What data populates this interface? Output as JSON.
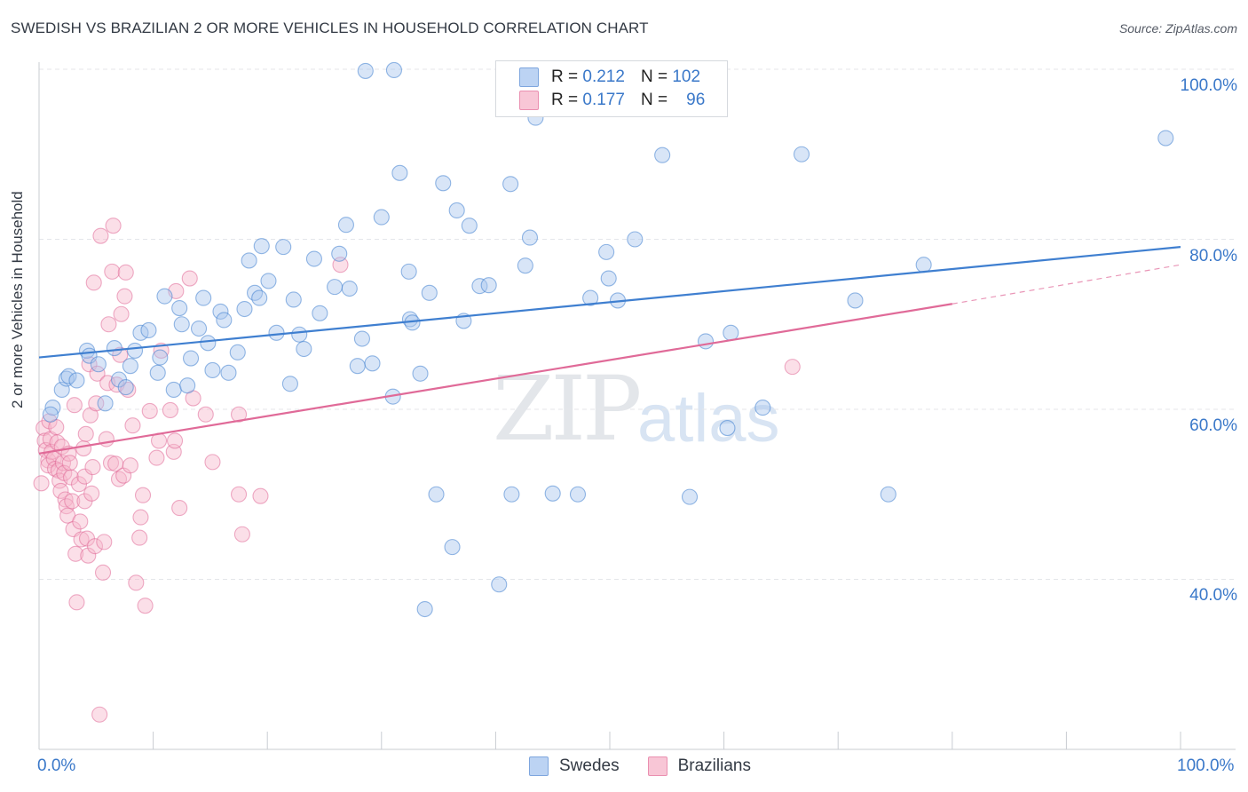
{
  "title": "SWEDISH VS BRAZILIAN 2 OR MORE VEHICLES IN HOUSEHOLD CORRELATION CHART",
  "source": "Source: ZipAtlas.com",
  "watermark": {
    "zip": "ZIP",
    "atlas": "atlas"
  },
  "legend": {
    "swedes": {
      "r_label": "R =",
      "r_value": "0.212",
      "n_label": "N =",
      "n_value": "102",
      "color": "#a9c6ee"
    },
    "brazilians": {
      "r_label": "R =",
      "r_value": "0.177",
      "n_label": "N =",
      "n_value": "96",
      "color": "#f6b8cc"
    }
  },
  "bottom_legend": {
    "swedes": "Swedes",
    "brazilians": "Brazilians"
  },
  "chart_data": {
    "type": "scatter",
    "xlabel": "",
    "ylabel": "2 or more Vehicles in Household",
    "xlim": [
      0,
      100
    ],
    "ylim": [
      20,
      100
    ],
    "x_tick_labels": [
      "0.0%",
      "100.0%"
    ],
    "y_tick_labels": [
      {
        "value": 100,
        "label": "100.0%"
      },
      {
        "value": 80,
        "label": "80.0%"
      },
      {
        "value": 60,
        "label": "60.0%"
      },
      {
        "value": 40,
        "label": "40.0%"
      }
    ],
    "grid": true,
    "series": [
      {
        "name": "Swedes",
        "color": "#3f7fd0",
        "fill": "#a9c6ee",
        "trend": {
          "x0": 0,
          "y0": 66.1,
          "x1": 100,
          "y1": 79.1
        },
        "points": [
          [
            1.2,
            60.2
          ],
          [
            1.0,
            59.4
          ],
          [
            2.0,
            62.3
          ],
          [
            2.4,
            63.6
          ],
          [
            2.6,
            63.9
          ],
          [
            3.3,
            63.4
          ],
          [
            4.2,
            66.9
          ],
          [
            4.4,
            66.3
          ],
          [
            5.2,
            65.3
          ],
          [
            5.8,
            60.7
          ],
          [
            6.6,
            67.2
          ],
          [
            7.0,
            63.5
          ],
          [
            7.6,
            62.6
          ],
          [
            8.0,
            65.1
          ],
          [
            8.4,
            66.9
          ],
          [
            8.9,
            69.0
          ],
          [
            9.6,
            69.3
          ],
          [
            10.4,
            64.3
          ],
          [
            10.6,
            66.1
          ],
          [
            11.0,
            73.3
          ],
          [
            11.8,
            62.3
          ],
          [
            12.3,
            71.9
          ],
          [
            12.5,
            70.0
          ],
          [
            13.0,
            62.8
          ],
          [
            13.3,
            66.0
          ],
          [
            14.0,
            69.5
          ],
          [
            14.4,
            73.1
          ],
          [
            14.8,
            67.8
          ],
          [
            15.2,
            64.6
          ],
          [
            15.9,
            71.5
          ],
          [
            16.2,
            70.5
          ],
          [
            16.6,
            64.3
          ],
          [
            17.4,
            66.7
          ],
          [
            18.0,
            71.8
          ],
          [
            18.4,
            77.5
          ],
          [
            18.9,
            73.7
          ],
          [
            19.3,
            73.1
          ],
          [
            19.5,
            79.2
          ],
          [
            20.1,
            75.1
          ],
          [
            20.8,
            69.0
          ],
          [
            21.4,
            79.1
          ],
          [
            22.0,
            63.0
          ],
          [
            22.3,
            72.9
          ],
          [
            22.8,
            68.8
          ],
          [
            23.2,
            67.1
          ],
          [
            24.1,
            77.7
          ],
          [
            24.6,
            71.3
          ],
          [
            25.9,
            74.4
          ],
          [
            26.3,
            78.3
          ],
          [
            26.9,
            81.7
          ],
          [
            27.2,
            74.2
          ],
          [
            27.9,
            65.1
          ],
          [
            28.3,
            68.3
          ],
          [
            28.6,
            99.8
          ],
          [
            29.2,
            65.4
          ],
          [
            30.0,
            82.6
          ],
          [
            31.0,
            61.5
          ],
          [
            31.1,
            99.9
          ],
          [
            31.6,
            87.8
          ],
          [
            32.4,
            76.2
          ],
          [
            32.5,
            70.6
          ],
          [
            32.7,
            70.2
          ],
          [
            33.4,
            64.2
          ],
          [
            33.8,
            36.5
          ],
          [
            34.2,
            73.7
          ],
          [
            34.8,
            50.0
          ],
          [
            35.4,
            86.6
          ],
          [
            36.2,
            43.8
          ],
          [
            36.6,
            83.4
          ],
          [
            37.2,
            70.4
          ],
          [
            37.7,
            81.6
          ],
          [
            38.6,
            74.5
          ],
          [
            39.4,
            74.6
          ],
          [
            40.3,
            39.4
          ],
          [
            41.3,
            86.5
          ],
          [
            41.4,
            50.0
          ],
          [
            42.6,
            76.9
          ],
          [
            43.0,
            80.2
          ],
          [
            43.5,
            94.3
          ],
          [
            45.0,
            50.1
          ],
          [
            47.2,
            50.0
          ],
          [
            48.3,
            73.1
          ],
          [
            49.7,
            78.5
          ],
          [
            49.9,
            75.4
          ],
          [
            50.7,
            72.8
          ],
          [
            52.2,
            80.0
          ],
          [
            54.6,
            89.9
          ],
          [
            57.0,
            49.7
          ],
          [
            58.4,
            68.0
          ],
          [
            60.3,
            57.8
          ],
          [
            60.6,
            69.0
          ],
          [
            63.4,
            60.2
          ],
          [
            66.8,
            90.0
          ],
          [
            71.5,
            72.8
          ],
          [
            74.4,
            50.0
          ],
          [
            77.5,
            77.0
          ],
          [
            98.7,
            91.9
          ]
        ]
      },
      {
        "name": "Brazilians",
        "color": "#e06a98",
        "fill": "#f6b8cc",
        "trend": {
          "x0": 0,
          "y0": 54.8,
          "x1": 80,
          "y1": 72.4,
          "dash_x1": 100,
          "dash_y1": 77.0
        },
        "points": [
          [
            0.2,
            51.3
          ],
          [
            0.4,
            57.8
          ],
          [
            0.5,
            56.3
          ],
          [
            0.6,
            55.2
          ],
          [
            0.8,
            54.0
          ],
          [
            0.8,
            53.4
          ],
          [
            0.9,
            58.6
          ],
          [
            1.0,
            56.5
          ],
          [
            1.1,
            55.0
          ],
          [
            1.3,
            54.2
          ],
          [
            1.4,
            53.0
          ],
          [
            1.5,
            57.9
          ],
          [
            1.6,
            56.1
          ],
          [
            1.7,
            52.8
          ],
          [
            1.8,
            51.6
          ],
          [
            1.9,
            50.4
          ],
          [
            2.0,
            55.6
          ],
          [
            2.1,
            53.7
          ],
          [
            2.2,
            52.5
          ],
          [
            2.3,
            49.4
          ],
          [
            2.4,
            48.6
          ],
          [
            2.5,
            47.5
          ],
          [
            2.6,
            54.8
          ],
          [
            2.7,
            53.7
          ],
          [
            2.8,
            52.0
          ],
          [
            2.9,
            49.2
          ],
          [
            3.0,
            45.9
          ],
          [
            3.1,
            60.5
          ],
          [
            3.2,
            43.0
          ],
          [
            3.3,
            37.3
          ],
          [
            3.5,
            51.2
          ],
          [
            3.6,
            46.8
          ],
          [
            3.7,
            44.7
          ],
          [
            3.9,
            55.4
          ],
          [
            4.0,
            52.1
          ],
          [
            4.0,
            49.2
          ],
          [
            4.1,
            57.1
          ],
          [
            4.2,
            44.8
          ],
          [
            4.3,
            42.8
          ],
          [
            4.4,
            65.3
          ],
          [
            4.5,
            59.3
          ],
          [
            4.6,
            50.1
          ],
          [
            4.7,
            53.2
          ],
          [
            4.8,
            74.9
          ],
          [
            4.9,
            43.9
          ],
          [
            5.0,
            60.7
          ],
          [
            5.1,
            64.2
          ],
          [
            5.3,
            24.1
          ],
          [
            5.4,
            80.4
          ],
          [
            5.6,
            40.8
          ],
          [
            5.7,
            44.4
          ],
          [
            5.9,
            56.5
          ],
          [
            6.0,
            63.1
          ],
          [
            6.1,
            70.0
          ],
          [
            6.3,
            53.7
          ],
          [
            6.4,
            76.2
          ],
          [
            6.5,
            81.6
          ],
          [
            6.7,
            53.6
          ],
          [
            6.8,
            62.9
          ],
          [
            7.0,
            51.8
          ],
          [
            7.1,
            66.4
          ],
          [
            7.2,
            71.2
          ],
          [
            7.4,
            52.2
          ],
          [
            7.5,
            73.3
          ],
          [
            7.6,
            76.1
          ],
          [
            7.8,
            62.3
          ],
          [
            8.0,
            53.4
          ],
          [
            8.2,
            58.1
          ],
          [
            8.5,
            39.6
          ],
          [
            8.8,
            44.9
          ],
          [
            8.9,
            47.3
          ],
          [
            9.1,
            49.9
          ],
          [
            9.3,
            36.9
          ],
          [
            9.7,
            59.8
          ],
          [
            10.3,
            54.3
          ],
          [
            10.5,
            56.3
          ],
          [
            10.7,
            66.9
          ],
          [
            11.5,
            59.9
          ],
          [
            11.8,
            55.0
          ],
          [
            11.9,
            56.3
          ],
          [
            12.0,
            73.9
          ],
          [
            12.3,
            48.4
          ],
          [
            13.2,
            75.4
          ],
          [
            13.5,
            61.3
          ],
          [
            14.6,
            59.4
          ],
          [
            15.2,
            53.8
          ],
          [
            17.5,
            59.4
          ],
          [
            17.5,
            50.0
          ],
          [
            17.8,
            45.3
          ],
          [
            19.4,
            49.8
          ],
          [
            26.4,
            77.0
          ],
          [
            66.0,
            65.0
          ]
        ]
      }
    ]
  }
}
